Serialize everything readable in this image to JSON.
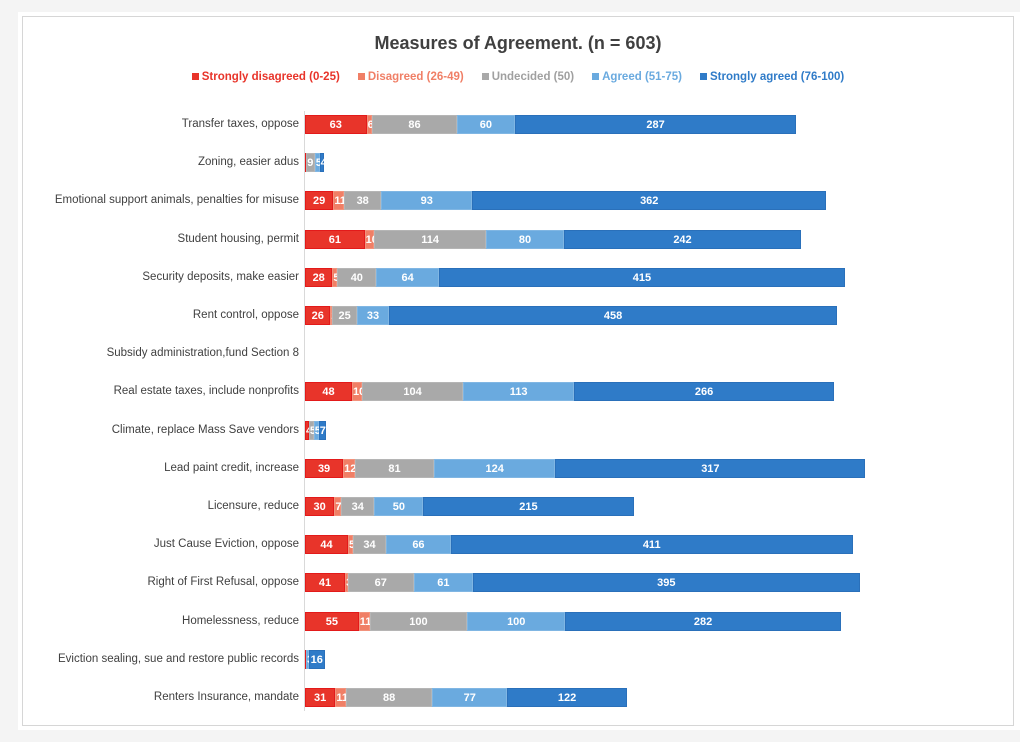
{
  "chart_data": {
    "type": "bar",
    "orientation": "horizontal",
    "stacked": true,
    "title": "Measures of Agreement. (n = 603)",
    "xlabel": "",
    "ylabel": "",
    "legend_position": "top",
    "grid": false,
    "categories": [
      "Transfer taxes, oppose",
      "Zoning, easier adus",
      "Emotional support animals, penalties for misuse",
      "Student housing, permit",
      "Security deposits, make easier",
      "Rent control, oppose",
      "Subsidy administration,fund Section 8",
      "Real estate taxes, include nonprofits",
      "Climate, replace Mass Save vendors",
      "Lead paint credit, increase",
      "Licensure, reduce",
      "Just Cause Eviction, oppose",
      "Right of First Refusal, oppose",
      "Homelessness, reduce",
      "Eviction sealing, sue and restore public records",
      "Renters Insurance, mandate"
    ],
    "series": [
      {
        "name": "Strongly disagreed (0-25)",
        "color": "#e8342a",
        "values": [
          63,
          1,
          29,
          61,
          28,
          26,
          0,
          48,
          4,
          39,
          30,
          44,
          41,
          55,
          1,
          31
        ]
      },
      {
        "name": "Disagreed (26-49)",
        "color": "#f07f66",
        "values": [
          6,
          0,
          11,
          10,
          5,
          2,
          0,
          10,
          0,
          12,
          7,
          5,
          3,
          11,
          0,
          11
        ]
      },
      {
        "name": "Undecided (50)",
        "color": "#a9a9a9",
        "values": [
          86,
          9,
          38,
          114,
          40,
          25,
          0,
          104,
          5,
          81,
          34,
          34,
          67,
          100,
          0,
          88
        ]
      },
      {
        "name": "Agreed (51-75)",
        "color": "#6aaadf",
        "values": [
          60,
          5,
          93,
          80,
          64,
          33,
          0,
          113,
          5,
          124,
          50,
          66,
          61,
          100,
          3,
          77
        ]
      },
      {
        "name": "Strongly agreed (76-100)",
        "color": "#2f7bc8",
        "values": [
          287,
          4,
          362,
          242,
          415,
          458,
          0,
          266,
          7,
          317,
          215,
          411,
          395,
          282,
          16,
          122
        ]
      }
    ],
    "xlim": [
      0,
      580
    ]
  }
}
